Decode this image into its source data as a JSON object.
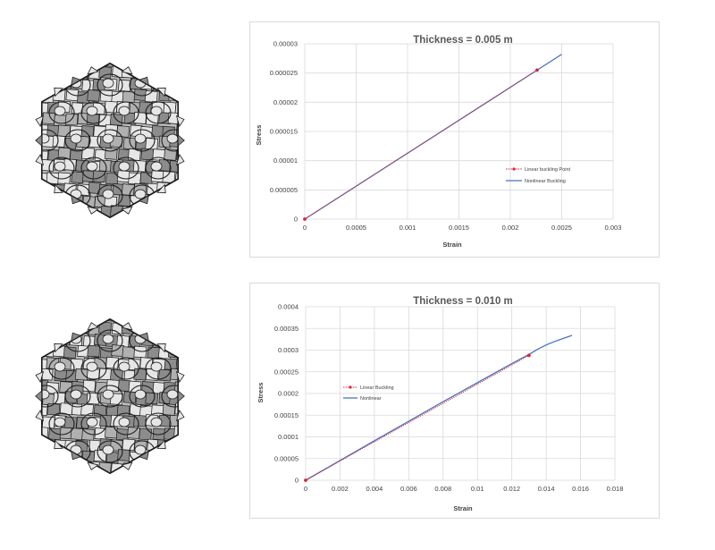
{
  "colors": {
    "nonlinear": "#4472c4",
    "linear": "#e0242f",
    "grid": "#d9d9d9",
    "lattice_light": "#e6e6e6",
    "lattice_dark": "#8c8c8c",
    "lattice_edge": "#1a1a1a"
  },
  "lattice_images": [
    {
      "name": "lattice-thin"
    },
    {
      "name": "lattice-thick"
    }
  ],
  "chart_data": [
    {
      "type": "line",
      "title": "Thickness = 0.005 m",
      "xlabel": "Strain",
      "ylabel": "Stress",
      "xlim": [
        0,
        0.003
      ],
      "ylim": [
        0,
        3e-05
      ],
      "x_ticks": [
        "0",
        "0.0005",
        "0.001",
        "0.0015",
        "0.002",
        "0.0025",
        "0.003"
      ],
      "y_ticks": [
        "0",
        "0.000005",
        "0.00001",
        "0.000015",
        "0.00002",
        "0.000025",
        "0.00003"
      ],
      "grid": true,
      "legend_position": "right-middle",
      "series": [
        {
          "name": "Linear buckling Point",
          "style": "dotted-with-markers",
          "color": "#e0242f",
          "x": [
            0,
            0.00226
          ],
          "y": [
            0,
            2.55e-05
          ]
        },
        {
          "name": "Nonlinear Buckling",
          "style": "solid",
          "color": "#4472c4",
          "x": [
            0,
            0.0025
          ],
          "y": [
            0,
            2.82e-05
          ]
        }
      ]
    },
    {
      "type": "line",
      "title": "Thickness = 0.010 m",
      "xlabel": "Strain",
      "ylabel": "Stress",
      "xlim": [
        0,
        0.018
      ],
      "ylim": [
        0,
        0.0004
      ],
      "x_ticks": [
        "0",
        "0.002",
        "0.004",
        "0.006",
        "0.008",
        "0.01",
        "0.012",
        "0.014",
        "0.016",
        "0.018"
      ],
      "y_ticks": [
        "0",
        "0.00005",
        "0.0001",
        "0.00015",
        "0.0002",
        "0.00025",
        "0.0003",
        "0.00035",
        "0.0004"
      ],
      "grid": true,
      "legend_position": "left-middle",
      "series": [
        {
          "name": "Linear Buckling",
          "style": "dotted-with-markers",
          "color": "#e0242f",
          "x": [
            0,
            0.013
          ],
          "y": [
            0,
            0.000288
          ]
        },
        {
          "name": "Nonlinear",
          "style": "solid",
          "color": "#4472c4",
          "x": [
            0,
            0.002,
            0.004,
            0.006,
            0.008,
            0.01,
            0.012,
            0.013,
            0.0135,
            0.014,
            0.0145,
            0.015,
            0.0155
          ],
          "y": [
            0,
            4.55e-05,
            9.1e-05,
            0.000136,
            0.000181,
            0.000225,
            0.000269,
            0.00029,
            0.000302,
            0.000312,
            0.00032,
            0.000327,
            0.000334
          ]
        }
      ]
    }
  ]
}
